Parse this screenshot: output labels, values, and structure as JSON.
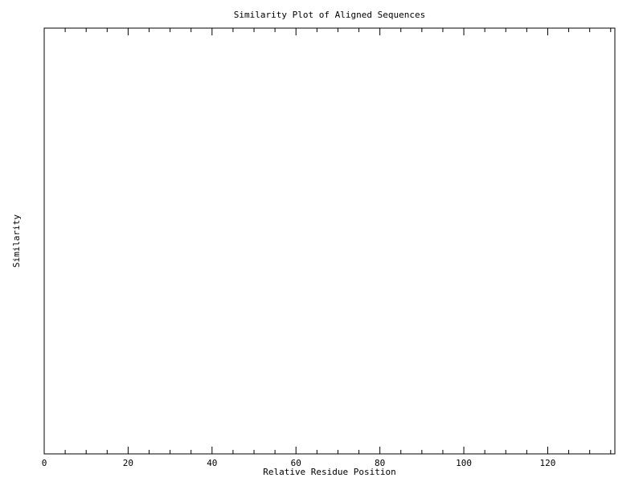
{
  "chart_data": {
    "type": "line",
    "title": "Similarity Plot of Aligned Sequences",
    "xlabel": "Relative Residue Position",
    "ylabel": "Similarity",
    "xlim": [
      0,
      136
    ],
    "x_major_ticks": [
      0,
      20,
      40,
      60,
      80,
      100,
      120
    ],
    "x_minor_step": 5,
    "y_tick_labels": [],
    "grid": false,
    "series": []
  },
  "colors": {
    "background": "#ffffff",
    "axis": "#000000"
  }
}
